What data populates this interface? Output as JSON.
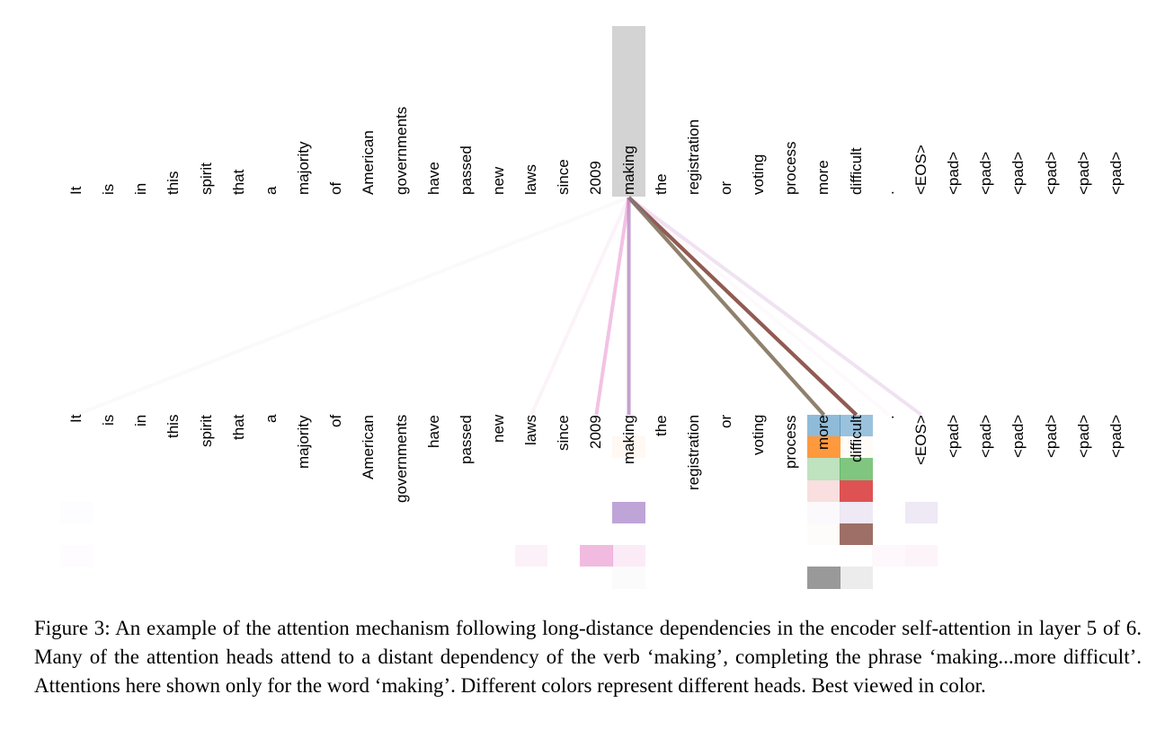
{
  "figure": {
    "tokens": [
      "It",
      "is",
      "in",
      "this",
      "spirit",
      "that",
      "a",
      "majority",
      "of",
      "American",
      "governments",
      "have",
      "passed",
      "new",
      "laws",
      "since",
      "2009",
      "making",
      "the",
      "registration",
      "or",
      "voting",
      "process",
      "more",
      "difficult",
      ".",
      "<EOS>",
      "<pad>",
      "<pad>",
      "<pad>",
      "<pad>",
      "<pad>",
      "<pad>"
    ],
    "query_token_index": 17,
    "highlight_color": "#d3d3d3",
    "heads": [
      {
        "color": "#1f77b4",
        "weights": {
          "23": 0.5,
          "24": 0.45
        }
      },
      {
        "color": "#ff7f0e",
        "weights": {
          "17": 0.05,
          "23": 0.8,
          "24": 0.03
        }
      },
      {
        "color": "#2ca02c",
        "weights": {
          "23": 0.3,
          "24": 0.6
        }
      },
      {
        "color": "#d62728",
        "weights": {
          "23": 0.15,
          "24": 0.8
        }
      },
      {
        "color": "#9467bd",
        "weights": {
          "0": 0.02,
          "17": 0.6,
          "23": 0.04,
          "24": 0.15,
          "26": 0.15
        }
      },
      {
        "color": "#8c564b",
        "weights": {
          "23": 0.02,
          "24": 0.85
        }
      },
      {
        "color": "#e377c2",
        "weights": {
          "0": 0.02,
          "14": 0.1,
          "16": 0.5,
          "17": 0.15,
          "25": 0.05,
          "26": 0.08
        }
      },
      {
        "color": "#7f7f7f",
        "weights": {
          "17": 0.03,
          "23": 0.8,
          "24": 0.15
        }
      }
    ]
  },
  "caption": "Figure 3: An example of the attention mechanism following long-distance dependencies in the encoder self-attention in layer 5 of 6. Many of the attention heads attend to a distant dependency of the verb ‘making’, completing the phrase ‘making...more difficult’. Attentions here shown only for the word ‘making’. Different colors represent different heads. Best viewed in color."
}
